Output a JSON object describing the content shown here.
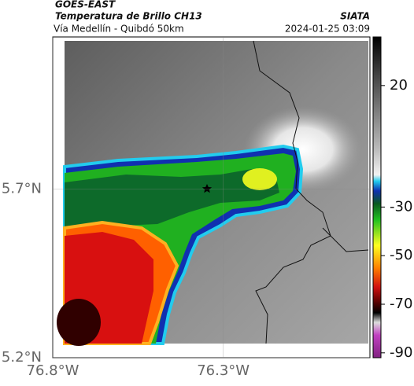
{
  "header": {
    "source": "GOES-EAST",
    "title": "Temperatura de Brillo CH13",
    "org": "SIATA",
    "subtitle": "Vía Medellín - Quibdó 50km",
    "date": "2024-01-25 03:09"
  },
  "map": {
    "xlim": [
      -76.8,
      -75.87
    ],
    "ylim": [
      5.2,
      6.15
    ],
    "xticks": [
      {
        "value": -76.8,
        "label": "76.8°W"
      },
      {
        "value": -76.3,
        "label": "76.3°W"
      }
    ],
    "yticks": [
      {
        "value": 5.7,
        "label": "5.7°N"
      },
      {
        "value": 5.2,
        "label": "5.2°N"
      }
    ]
  },
  "colorbar": {
    "lim": [
      -92,
      40
    ],
    "ticks": [
      20,
      -30,
      -50,
      -70,
      -90
    ]
  }
}
